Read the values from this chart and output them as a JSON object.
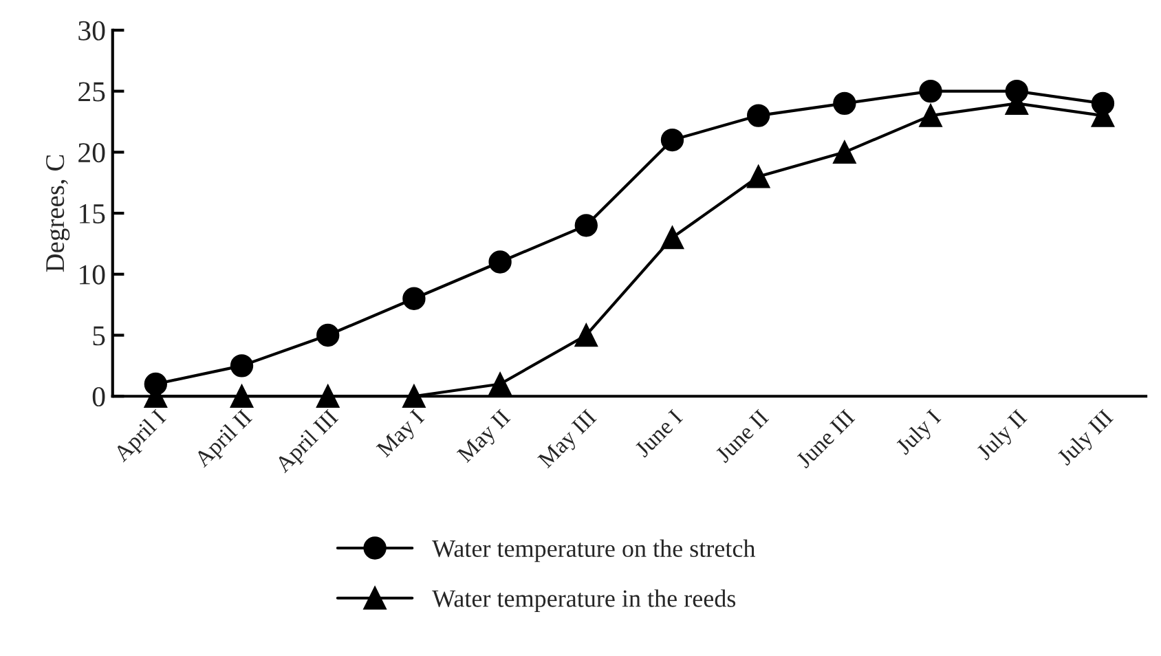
{
  "chart_data": {
    "type": "line",
    "ylabel": "Degrees, C",
    "categories": [
      "April I",
      "April II",
      "April III",
      "May I",
      "May II",
      "May III",
      "June I",
      "June II",
      "June III",
      "July I",
      "July II",
      "July III"
    ],
    "series": [
      {
        "name": "Water temperature on the stretch",
        "color": "#000000",
        "marker": "circle",
        "values": [
          1,
          2.5,
          5,
          8,
          11,
          14,
          21,
          23,
          24,
          25,
          25,
          24
        ]
      },
      {
        "name": "Water temperature in the reeds",
        "color": "#000000",
        "marker": "triangle",
        "values": [
          0,
          0,
          0,
          0,
          1,
          5,
          13,
          18,
          20,
          23,
          24,
          23
        ]
      }
    ],
    "ylim": [
      0,
      30
    ],
    "yticks": [
      0,
      5,
      10,
      15,
      20,
      25,
      30
    ],
    "grid": false,
    "legend": "bottom",
    "line_style": "solid"
  }
}
